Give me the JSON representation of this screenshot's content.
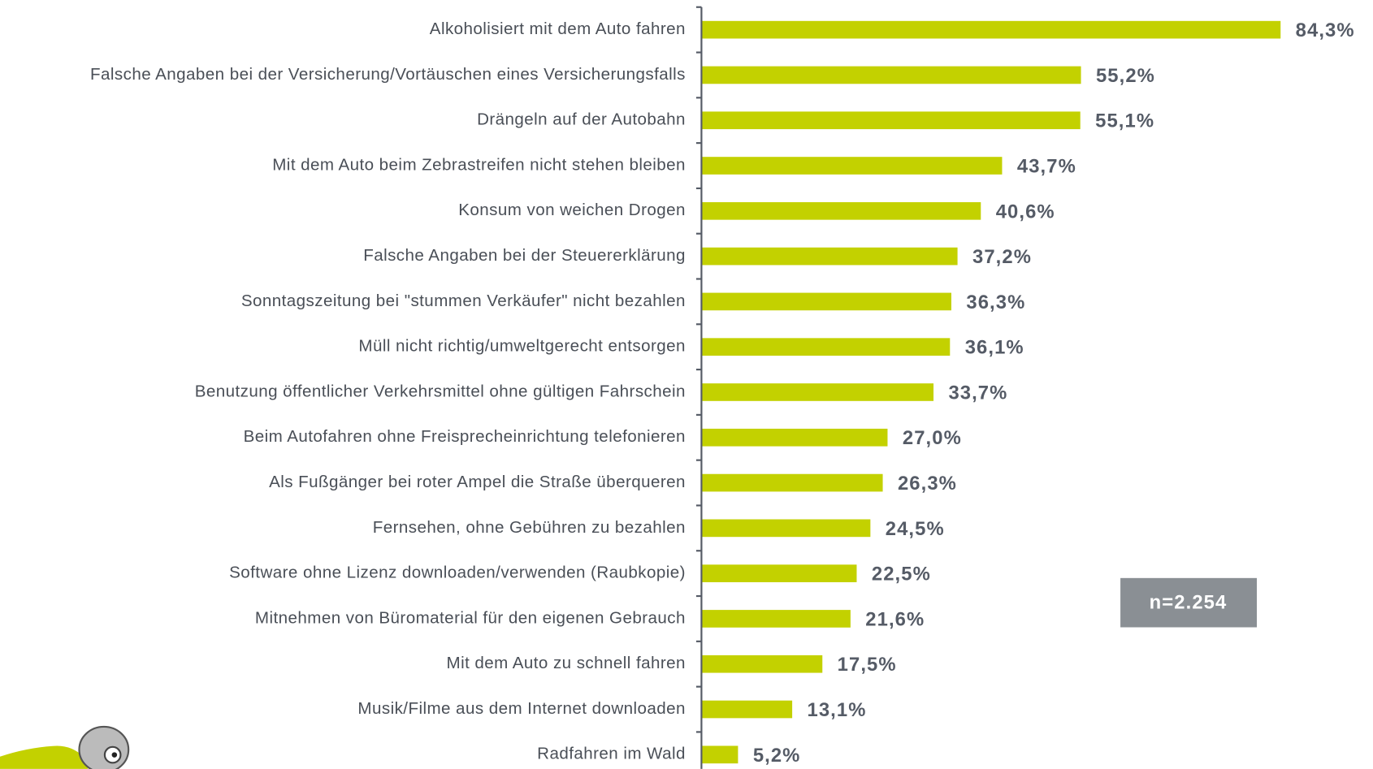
{
  "chart_data": {
    "type": "barh",
    "categories": [
      "Alkoholisiert mit dem Auto fahren",
      "Falsche Angaben bei der Versicherung/Vortäuschen eines Versicherungsfalls",
      "Drängeln auf der Autobahn",
      "Mit dem Auto beim Zebrastreifen nicht stehen bleiben",
      "Konsum von weichen Drogen",
      "Falsche Angaben bei der Steuererklärung",
      "Sonntagszeitung bei \"stummen Verkäufer\" nicht bezahlen",
      "Müll nicht richtig/umweltgerecht entsorgen",
      "Benutzung öffentlicher Verkehrsmittel ohne gültigen Fahrschein",
      "Beim Autofahren ohne Freisprecheinrichtung telefonieren",
      "Als Fußgänger bei roter Ampel die Straße überqueren",
      "Fernsehen, ohne Gebühren zu bezahlen",
      "Software ohne Lizenz downloaden/verwenden (Raubkopie)",
      "Mitnehmen von Büromaterial für den eigenen Gebrauch",
      "Mit dem Auto zu schnell fahren",
      "Musik/Filme aus dem Internet downloaden",
      "Radfahren im Wald"
    ],
    "values": [
      84.3,
      55.2,
      55.1,
      43.7,
      40.6,
      37.2,
      36.3,
      36.1,
      33.7,
      27.0,
      26.3,
      24.5,
      22.5,
      21.6,
      17.5,
      13.1,
      5.2
    ],
    "value_labels": [
      "84,3%",
      "55,2%",
      "55,1%",
      "43,7%",
      "40,6%",
      "37,2%",
      "36,3%",
      "36,1%",
      "33,7%",
      "27,0%",
      "26,3%",
      "24,5%",
      "22,5%",
      "21,6%",
      "17,5%",
      "13,1%",
      "5,2%"
    ],
    "color": "#c3d100",
    "annotation": "n=2.254"
  }
}
